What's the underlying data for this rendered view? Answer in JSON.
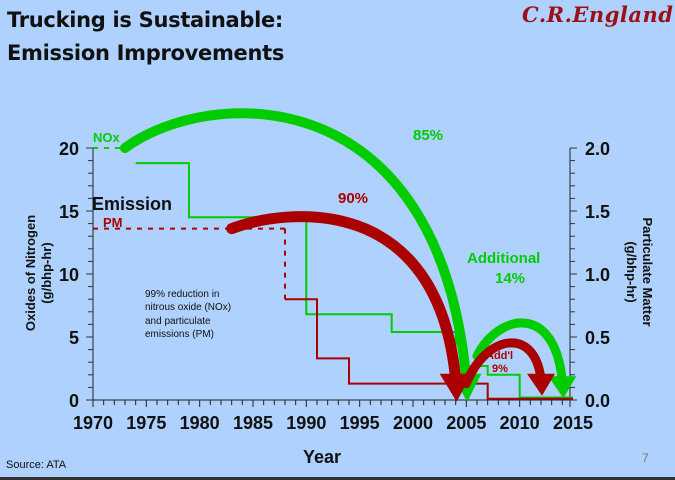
{
  "slide": {
    "title_line1": "Trucking is Sustainable:",
    "title_line2": "Emission Improvements",
    "logo": "C.R.England",
    "source": "Source: ATA",
    "page_number": "7"
  },
  "colors": {
    "background": "#aed2fd",
    "nox": "#00cc00",
    "pm": "#aa0000",
    "logo": "#9b1016"
  },
  "chart_data": {
    "type": "line",
    "title": "",
    "xlabel": "Year",
    "ylabel_left": "Oxides of Nitrogen (g/bhp-hr)",
    "ylabel_left_line1": "Oxides of Nitrogen",
    "ylabel_left_line2": "(g/bhp-hr)",
    "ylabel_right": "Particulate Matter (g/bhp-hr)",
    "ylabel_right_line1": "Particulate Matter",
    "ylabel_right_line2": "(g/bhp-hr)",
    "xlim": [
      1970,
      2015
    ],
    "ylim_left": [
      0,
      20
    ],
    "ylim_right": [
      0,
      2.0
    ],
    "x_ticks": [
      "1970",
      "1975",
      "1980",
      "1985",
      "1990",
      "1995",
      "2000",
      "2005",
      "2010",
      "2015"
    ],
    "y_ticks_left": [
      "0",
      "5",
      "10",
      "15",
      "20"
    ],
    "y_ticks_right": [
      "0.0",
      "0.5",
      "1.0",
      "1.5",
      "2.0"
    ],
    "series": [
      {
        "name": "NOx",
        "axis": "left",
        "step": true,
        "dashed_segments": [
          {
            "x": [
              1970,
              1974
            ],
            "y": 20
          }
        ],
        "points": [
          [
            1974,
            18.8
          ],
          [
            1979,
            18.8
          ],
          [
            1979,
            14.5
          ],
          [
            1990,
            14.5
          ],
          [
            1990,
            6.8
          ],
          [
            1998,
            6.8
          ],
          [
            1998,
            5.4
          ],
          [
            2004,
            5.4
          ],
          [
            2004,
            2.7
          ],
          [
            2007,
            2.7
          ],
          [
            2007,
            2.0
          ],
          [
            2010,
            2.0
          ],
          [
            2010,
            0.2
          ],
          [
            2015,
            0.2
          ]
        ]
      },
      {
        "name": "PM",
        "axis": "right",
        "step": true,
        "dashed_segments": [
          {
            "x": [
              1970,
              1988
            ],
            "y": 1.36
          },
          {
            "x_vertical": 1988,
            "y": [
              1.36,
              0.8
            ]
          }
        ],
        "points": [
          [
            1988,
            0.8
          ],
          [
            1991,
            0.8
          ],
          [
            1991,
            0.33
          ],
          [
            1994,
            0.33
          ],
          [
            1994,
            0.13
          ],
          [
            2007,
            0.13
          ],
          [
            2007,
            0.01
          ],
          [
            2015,
            0.01
          ]
        ]
      }
    ],
    "annotations": [
      {
        "text": "NOx",
        "color": "#00cc00"
      },
      {
        "text": "Emission",
        "color": "#111111"
      },
      {
        "text": "PM",
        "color": "#aa0000"
      },
      {
        "text": "85%",
        "color": "#00cc00",
        "arrow": {
          "from": [
            1973,
            20
          ],
          "to": [
            2005,
            0.5
          ],
          "series": "NOx"
        }
      },
      {
        "text": "90%",
        "color": "#aa0000",
        "arrow": {
          "from": [
            1983,
            13.6
          ],
          "to": [
            2004,
            0.5
          ],
          "series": "PM"
        }
      },
      {
        "text": "Additional",
        "color": "#00cc00"
      },
      {
        "text": "14%",
        "color": "#00cc00",
        "arrow": {
          "from": [
            2006,
            3.5
          ],
          "to": [
            2014,
            0.3
          ],
          "series": "NOx"
        }
      },
      {
        "text": "Add'l",
        "color": "#aa0000"
      },
      {
        "text": "9%",
        "color": "#aa0000",
        "arrow": {
          "from": [
            2005,
            1.3
          ],
          "to": [
            2012,
            0.5
          ],
          "series": "PM"
        }
      },
      {
        "text_lines": [
          "99% reduction in",
          "nitrous oxide (NOx)",
          "and particulate",
          "emissions (PM)"
        ],
        "color": "#111111"
      }
    ]
  }
}
